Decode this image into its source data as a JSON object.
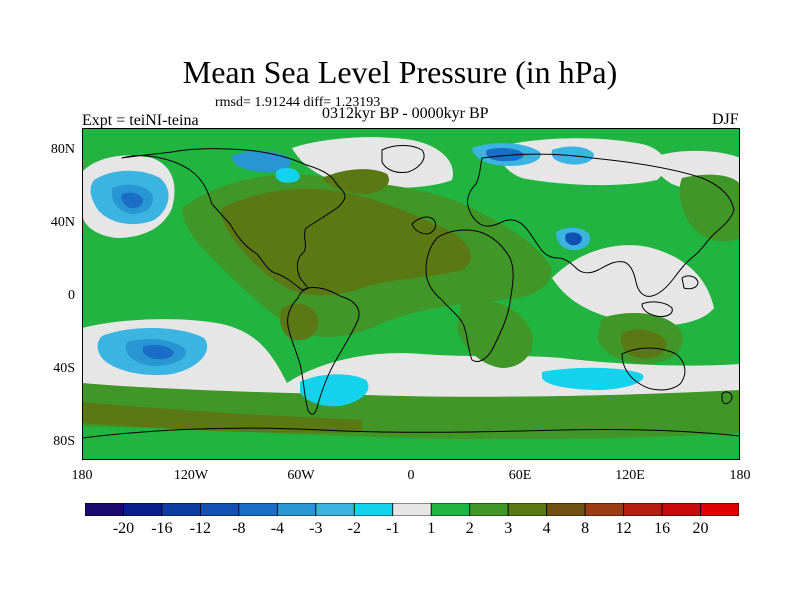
{
  "title": "Mean Sea Level Pressure (in hPa)",
  "stats": "rmsd= 1.91244 diff= 1.23193",
  "period": "0312kyr BP - 0000kyr BP",
  "experiment": "Expt = teiNI-teina",
  "season": "DJF",
  "chart_data": {
    "type": "heatmap",
    "projection": "cylindrical equidistant",
    "lat_labels": [
      "80N",
      "40N",
      "0",
      "40S",
      "80S"
    ],
    "lon_labels": [
      "180",
      "120W",
      "60W",
      "0",
      "60E",
      "120E",
      "180"
    ],
    "colorbar": {
      "labels": [
        "-20",
        "-16",
        "-12",
        "-8",
        "-4",
        "-3",
        "-2",
        "-1",
        "1",
        "2",
        "3",
        "4",
        "8",
        "12",
        "16",
        "20"
      ],
      "colors": [
        "#1a0a6e",
        "#0a1e8c",
        "#0f3ca0",
        "#1250b4",
        "#1a6ec8",
        "#2896d2",
        "#3cb4e1",
        "#14d2ec",
        "#e6e6e6",
        "#22b440",
        "#419628",
        "#5a7814",
        "#6e5010",
        "#9c3c14",
        "#b41e10",
        "#c80a0a",
        "#dc0000"
      ]
    }
  }
}
